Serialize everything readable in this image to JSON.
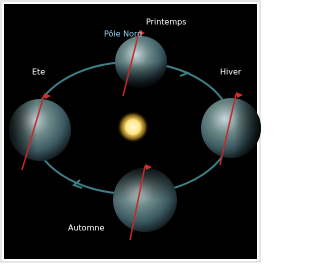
{
  "labels": {
    "spring": "Printemps",
    "north_pole": "Pôle Nord",
    "summer": "Ete",
    "winter": "Hiver",
    "autumn": "Automne"
  }
}
